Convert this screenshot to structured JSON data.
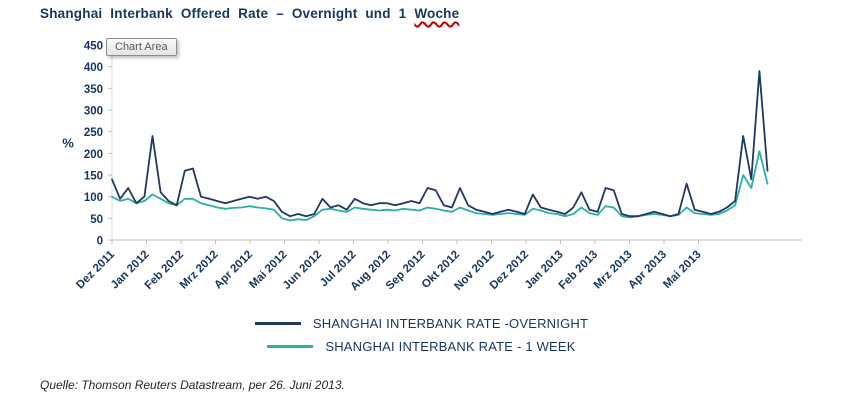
{
  "title": {
    "main": "Shanghai Interbank Offered Rate – Overnight und 1",
    "underlined": "Woche"
  },
  "tooltip": {
    "label": "Chart Area"
  },
  "source": {
    "text": "Quelle: Thomson Reuters Datastream, per 26. Juni 2013."
  },
  "chart_data": {
    "type": "line",
    "title": "Shanghai Interbank Offered Rate – Overnight und 1 Woche",
    "xlabel": "",
    "ylabel": "%",
    "ylim": [
      0,
      450
    ],
    "yticks": [
      0,
      50,
      100,
      150,
      200,
      250,
      300,
      350,
      400,
      450
    ],
    "grid": false,
    "legend_position": "bottom",
    "axis_color": "#BFBFBF",
    "x_tick_labels": [
      "Dez 2011",
      "Jan 2012",
      "Feb 2012",
      "Mrz 2012",
      "Apr 2012",
      "Mai 2012",
      "Jun 2012",
      "Jul 2012",
      "Aug 2012",
      "Sep 2012",
      "Okt 2012",
      "Nov 2012",
      "Dez 2012",
      "Jan 2013",
      "Feb 2013",
      "Mrz 2013",
      "Apr 2013",
      "Mai 2013"
    ],
    "x_axis_months_total": 20,
    "data_months_span": 19,
    "x_unit": "weekly samples, Dez 2011 – 26. Juni 2013",
    "series": [
      {
        "id": "overnight",
        "name": "SHANGHAI INTERBANK RATE -OVERNIGHT",
        "color": "#1F3864",
        "values": [
          140,
          95,
          120,
          85,
          100,
          240,
          110,
          90,
          80,
          160,
          165,
          100,
          95,
          90,
          85,
          90,
          95,
          100,
          95,
          100,
          90,
          65,
          55,
          60,
          55,
          60,
          95,
          75,
          80,
          70,
          95,
          85,
          80,
          85,
          85,
          80,
          85,
          90,
          85,
          120,
          115,
          80,
          75,
          120,
          80,
          70,
          65,
          60,
          65,
          70,
          65,
          60,
          105,
          75,
          70,
          65,
          60,
          75,
          110,
          70,
          65,
          120,
          115,
          60,
          55,
          55,
          60,
          65,
          60,
          55,
          60,
          130,
          70,
          65,
          60,
          65,
          75,
          90,
          240,
          140,
          390,
          160
        ]
      },
      {
        "id": "1week",
        "name": "SHANGHAI INTERBANK RATE - 1 WEEK",
        "color": "#2BB0A3",
        "values": [
          100,
          90,
          95,
          85,
          90,
          105,
          95,
          85,
          80,
          95,
          95,
          85,
          80,
          75,
          72,
          74,
          75,
          78,
          75,
          73,
          70,
          50,
          45,
          48,
          46,
          55,
          70,
          72,
          68,
          65,
          75,
          72,
          70,
          68,
          70,
          68,
          72,
          70,
          68,
          75,
          72,
          68,
          65,
          75,
          68,
          62,
          60,
          58,
          60,
          62,
          60,
          58,
          72,
          68,
          62,
          60,
          55,
          60,
          75,
          62,
          58,
          78,
          75,
          55,
          52,
          55,
          58,
          60,
          58,
          55,
          58,
          75,
          62,
          60,
          58,
          60,
          68,
          80,
          150,
          120,
          205,
          130
        ]
      }
    ]
  }
}
